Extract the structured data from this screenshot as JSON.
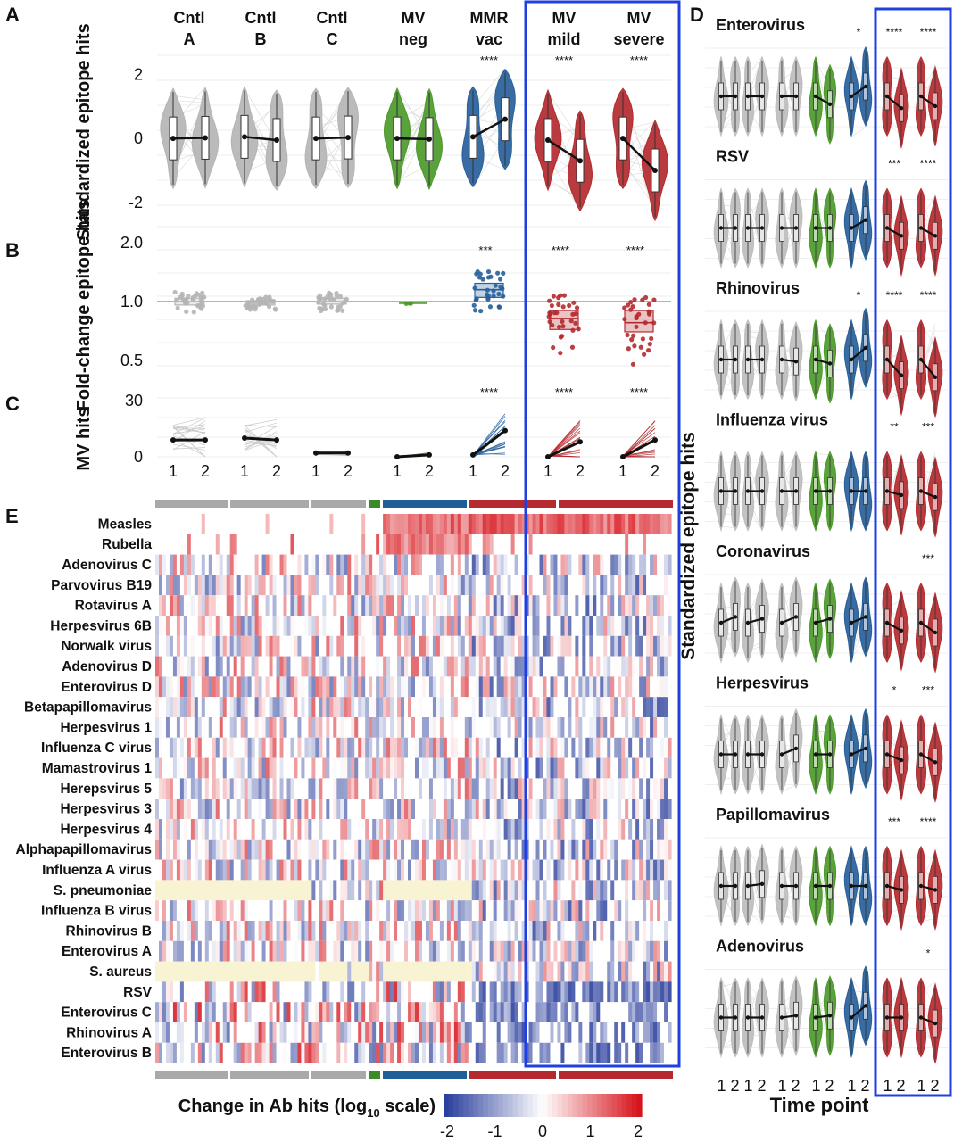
{
  "figure": {
    "panel_letters": [
      "A",
      "B",
      "C",
      "D",
      "E"
    ],
    "groups": [
      {
        "line1": "Cntl",
        "line2": "A",
        "color": "#b5b5b5"
      },
      {
        "line1": "Cntl",
        "line2": "B",
        "color": "#b5b5b5"
      },
      {
        "line1": "Cntl",
        "line2": "C",
        "color": "#b5b5b5"
      },
      {
        "line1": "MV",
        "line2": "neg",
        "color": "#4c9a2a"
      },
      {
        "line1": "MMR",
        "line2": "vac",
        "color": "#27609b"
      },
      {
        "line1": "MV",
        "line2": "mild",
        "color": "#b42a2f"
      },
      {
        "line1": "MV",
        "line2": "severe",
        "color": "#b42a2f"
      }
    ],
    "timepoint_ticks": [
      "1",
      "2"
    ]
  },
  "chart_data": [
    {
      "id": "A",
      "type": "violin",
      "ylabel": "Standardized epitope hits",
      "y_ticks": [
        "2",
        "0",
        "-2"
      ],
      "ylim": [
        -2.2,
        2.6
      ],
      "groups": [
        "Cntl A",
        "Cntl B",
        "Cntl C",
        "MV neg",
        "MMR vac",
        "MV mild",
        "MV severe"
      ],
      "median_t1": [
        0.0,
        0.05,
        0.0,
        0.0,
        0.05,
        -0.05,
        0.0
      ],
      "median_t2": [
        0.02,
        -0.05,
        0.03,
        -0.02,
        0.6,
        -0.7,
        -1.0
      ],
      "significance": [
        "",
        "",
        "",
        "",
        "****",
        "****",
        "****"
      ]
    },
    {
      "id": "B",
      "type": "box",
      "ylabel": "Fold-change epitope hits",
      "y_ticks": [
        "2.0",
        "1.0",
        "0.5"
      ],
      "yscale": "log",
      "groups": [
        "Cntl A",
        "Cntl B",
        "Cntl C",
        "MV neg",
        "MMR vac",
        "MV mild",
        "MV severe"
      ],
      "median": [
        1.0,
        0.98,
        1.0,
        0.98,
        1.15,
        0.82,
        0.78
      ],
      "q1": [
        0.96,
        0.96,
        0.97,
        0.97,
        1.05,
        0.72,
        0.7
      ],
      "q3": [
        1.04,
        1.01,
        1.04,
        0.99,
        1.24,
        0.9,
        0.9
      ],
      "significance": [
        "",
        "",
        "",
        "",
        "***",
        "****",
        "****"
      ]
    },
    {
      "id": "C",
      "type": "line",
      "ylabel": "MV hits",
      "y_ticks": [
        "30",
        "0"
      ],
      "ylim": [
        0,
        35
      ],
      "groups": [
        "Cntl A",
        "Cntl B",
        "Cntl C",
        "MV neg",
        "MMR vac",
        "MV mild",
        "MV severe"
      ],
      "mean_t1": [
        9,
        10,
        2,
        0,
        1,
        0,
        0
      ],
      "mean_t2": [
        9,
        9,
        2,
        1,
        14,
        8,
        9
      ],
      "significance": [
        "",
        "",
        "",
        "",
        "****",
        "****",
        "****"
      ]
    },
    {
      "id": "D",
      "type": "violin-grid",
      "ylabel": "Standardized epitope hits",
      "xlabel": "Time point",
      "x_ticks": [
        "1 2",
        "1 2",
        "1 2",
        "1 2",
        "1 2",
        "1 2",
        "1 2"
      ],
      "rows": [
        {
          "name": "Enterovirus",
          "significance": [
            "",
            "",
            "",
            "",
            "*",
            "****",
            "****"
          ],
          "trend": [
            0,
            0,
            0,
            -0.4,
            0.5,
            -0.6,
            -0.5
          ]
        },
        {
          "name": "RSV",
          "significance": [
            "",
            "",
            "",
            "",
            "",
            "***",
            "****"
          ],
          "trend": [
            0,
            0,
            0,
            0,
            0.4,
            -0.4,
            -0.4
          ]
        },
        {
          "name": "Rhinovirus",
          "significance": [
            "",
            "",
            "",
            "",
            "*",
            "****",
            "****"
          ],
          "trend": [
            0,
            0,
            -0.1,
            -0.2,
            0.6,
            -0.8,
            -0.9
          ]
        },
        {
          "name": "Influenza virus",
          "significance": [
            "",
            "",
            "",
            "",
            "",
            "**",
            "***"
          ],
          "trend": [
            0,
            0,
            0,
            0,
            0,
            -0.2,
            -0.3
          ]
        },
        {
          "name": "Coronavirus",
          "significance": [
            "",
            "",
            "",
            "",
            "",
            "",
            "***"
          ],
          "trend": [
            0.3,
            0.2,
            0.3,
            0.2,
            0.3,
            -0.4,
            -0.5
          ]
        },
        {
          "name": "Herpesvirus",
          "significance": [
            "",
            "",
            "",
            "",
            "",
            "*",
            "***"
          ],
          "trend": [
            0,
            0,
            0.3,
            0,
            0.3,
            -0.3,
            -0.4
          ]
        },
        {
          "name": "Papillomavirus",
          "significance": [
            "",
            "",
            "",
            "",
            "",
            "***",
            "****"
          ],
          "trend": [
            0,
            0.1,
            0,
            0,
            0,
            -0.2,
            -0.2
          ]
        },
        {
          "name": "Adenovirus",
          "significance": [
            "",
            "",
            "",
            "",
            "",
            "",
            "*"
          ],
          "trend": [
            0,
            0,
            0.1,
            0.1,
            0.6,
            0,
            -0.3
          ]
        }
      ]
    },
    {
      "id": "E",
      "type": "heatmap",
      "rows": [
        "Measles",
        "Rubella",
        "Adenovirus C",
        "Parvovirus B19",
        "Rotavirus A",
        "Herpesvirus 6B",
        "Norwalk virus",
        "Adenovirus D",
        "Enterovirus D",
        "Betapapillomavirus",
        "Herpesvirus 1",
        "Influenza C virus",
        "Mamastrovirus 1",
        "Herepsvirus 5",
        "Herpesvirus 3",
        "Herpesvirus 4",
        "Alphapapillomavirus",
        "Influenza A virus",
        "S.  pneumoniae",
        "Influenza B virus",
        "Rhinovirus  B",
        "Enterovirus A",
        "S. aureus",
        "RSV",
        "Enterovirus C",
        "Rhinovirus  A",
        "Enterovirus B"
      ],
      "colorbar_title": "Change in Ab hits (log",
      "colorbar_sub": "10",
      "colorbar_suffix": " scale)",
      "colorbar_ticks": [
        "-2",
        "-1",
        "0",
        "1",
        "2"
      ],
      "color_range": [
        -2,
        2
      ],
      "colors": {
        "low": "#2b3f9c",
        "mid": "#ffffff",
        "high": "#d6141b",
        "missing": "#f8f3d2"
      }
    }
  ]
}
